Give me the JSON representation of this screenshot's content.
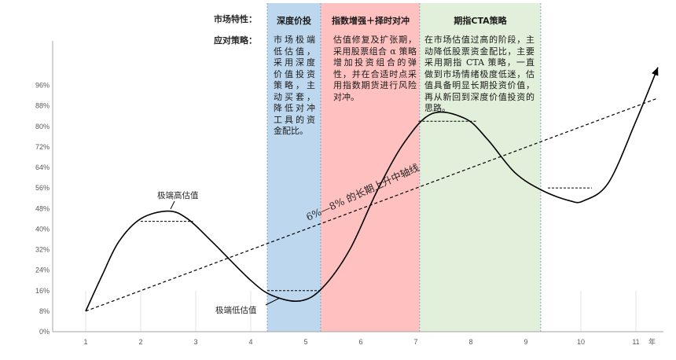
{
  "header": {
    "row1_label": "市场特性：",
    "row2_label": "应对策略："
  },
  "phases": [
    {
      "title": "深度价投",
      "desc": "市场极端低估值，采用深度价值投资策略，主动买套，降低对冲工具的资金配比。",
      "color": "#bdd7ee",
      "x_start": 4.3,
      "x_end": 5.27
    },
    {
      "title": "指数增强＋择时对冲",
      "desc": "估值修复及扩张期，采用股票组合 α 策略增加投资组合的弹性，并在合适时点采用指数期货进行风险对冲。",
      "color": "#ffc0c0",
      "x_start": 5.27,
      "x_end": 7.07
    },
    {
      "title": "期指CTA策略",
      "desc": "在市场估值过高的阶段，主动降低股票资金配比，主要采用期指 CTA 策略，一直做到市场情绪极度低迷，估值具备明显长期投资价值，再从新回到深度价值投资的思路。",
      "color": "#e2efda",
      "x_start": 7.07,
      "x_end": 9.27
    }
  ],
  "annotations": {
    "high": "极端高估值",
    "low": "极端低估值",
    "trend": "6%—8% 的长期上升中轴线",
    "x_unit": "年"
  },
  "colors": {
    "curve": "#000000",
    "axis": "#a6a6a6",
    "grid": "#e3e3e3",
    "phase_border": "#7fa9c9"
  },
  "chart_data": {
    "type": "line",
    "title": "",
    "xlabel": "年",
    "ylabel": "",
    "x_ticks": [
      1,
      2,
      3,
      4,
      5,
      6,
      7,
      8,
      9,
      10,
      11
    ],
    "y_ticks": [
      "0%",
      "8%",
      "16%",
      "24%",
      "32%",
      "40%",
      "48%",
      "56%",
      "64%",
      "72%",
      "80%",
      "88%",
      "96%"
    ],
    "xlim": [
      0.4,
      11.5
    ],
    "ylim": [
      0,
      100
    ],
    "grid": "vertical",
    "series": [
      {
        "style": "solid-curve",
        "x": [
          1,
          1.3,
          1.6,
          2.0,
          2.5,
          2.85,
          3.3,
          4.0,
          4.4,
          4.9,
          5.3,
          5.8,
          6.3,
          6.8,
          7.3,
          7.9,
          8.3,
          8.8,
          9.3,
          9.8,
          10.05,
          10.5,
          11.0,
          11.4
        ],
        "y": [
          8,
          22,
          35,
          44,
          47,
          44,
          35,
          20,
          14,
          12,
          17,
          32,
          55,
          74,
          85,
          83,
          75,
          62,
          55,
          51,
          51,
          58,
          82,
          103
        ]
      },
      {
        "style": "dashed-line",
        "x": [
          1,
          11.4
        ],
        "y": [
          8,
          91
        ]
      }
    ],
    "level_markers": [
      {
        "x_from": 2.0,
        "x_to": 2.95,
        "y": 43
      },
      {
        "x_from": 4.3,
        "x_to": 5.27,
        "y": 16
      },
      {
        "x_from": 7.05,
        "x_to": 8.1,
        "y": 82
      },
      {
        "x_from": 9.4,
        "x_to": 10.2,
        "y": 56
      }
    ]
  }
}
